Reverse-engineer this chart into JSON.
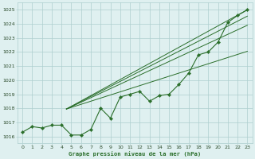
{
  "x": [
    0,
    1,
    2,
    3,
    4,
    5,
    6,
    7,
    8,
    9,
    10,
    11,
    12,
    13,
    14,
    15,
    16,
    17,
    18,
    19,
    20,
    21,
    22,
    23
  ],
  "main_line": [
    1016.3,
    1016.7,
    1016.6,
    1016.8,
    1016.8,
    1016.1,
    1016.1,
    1016.5,
    1018.0,
    1017.3,
    1018.8,
    1019.0,
    1019.2,
    1018.5,
    1018.9,
    1019.0,
    1019.7,
    1020.5,
    1021.8,
    1022.0,
    1022.7,
    1024.1,
    1024.6,
    1025.0
  ],
  "line1_x": [
    4.5,
    23
  ],
  "line1_y": [
    1017.95,
    1025.0
  ],
  "line2_x": [
    4.5,
    23
  ],
  "line2_y": [
    1017.95,
    1024.55
  ],
  "line3_x": [
    4.5,
    23
  ],
  "line3_y": [
    1017.95,
    1023.9
  ],
  "line4_x": [
    4.5,
    23
  ],
  "line4_y": [
    1017.95,
    1022.05
  ],
  "bg_color": "#dff0f0",
  "grid_color": "#aecece",
  "line_color": "#2a6e2a",
  "title": "Graphe pression niveau de la mer (hPa)",
  "ylim": [
    1015.5,
    1025.5
  ],
  "yticks": [
    1016,
    1017,
    1018,
    1019,
    1020,
    1021,
    1022,
    1023,
    1024,
    1025
  ],
  "xticks": [
    0,
    1,
    2,
    3,
    4,
    5,
    6,
    7,
    8,
    9,
    10,
    11,
    12,
    13,
    14,
    15,
    16,
    17,
    18,
    19,
    20,
    21,
    22,
    23
  ]
}
